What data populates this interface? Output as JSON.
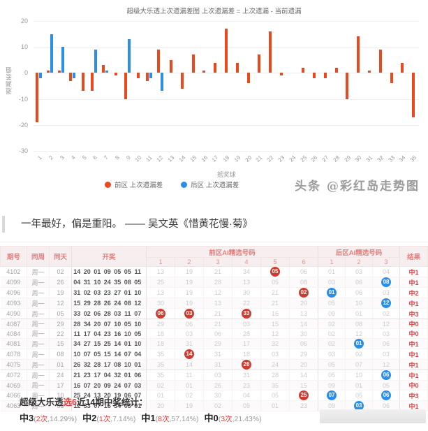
{
  "chart_data": {
    "type": "bar",
    "title": "超级大乐透上次遗漏差图 上次遗漏差 = 上次遗漏 - 当前遗漏",
    "xlabel": "摇奖球",
    "ylabel": "遗漏差值",
    "ylim": [
      -30,
      20
    ],
    "yticks": [
      20,
      10,
      0,
      -10,
      -20,
      -30
    ],
    "grid": true,
    "legend_position": "bottom",
    "categories": [
      "1",
      "2",
      "3",
      "4",
      "5",
      "6",
      "7",
      "8",
      "9",
      "10",
      "11",
      "12",
      "13",
      "14",
      "15",
      "16",
      "17",
      "18",
      "19",
      "20",
      "21",
      "22",
      "23",
      "24",
      "25",
      "26",
      "27",
      "28",
      "29",
      "30",
      "31",
      "32",
      "33",
      "34",
      "35"
    ],
    "series": [
      {
        "name": "前区 上次遗漏差",
        "color": "#e8491e",
        "values": [
          -19,
          1,
          1,
          -3,
          -7,
          -7,
          3,
          -1,
          -10,
          -2,
          -3,
          9,
          5,
          -6,
          7,
          1,
          4,
          17,
          4,
          -4,
          7,
          16,
          -1,
          0,
          2,
          -2,
          -2,
          2,
          -10,
          14,
          1,
          9,
          -4,
          4,
          -17
        ]
      },
      {
        "name": "后区 上次遗漏差",
        "color": "#2b8fe8",
        "values": [
          -2,
          15,
          10,
          -2,
          0,
          9,
          1,
          0,
          13,
          0,
          -2,
          -7,
          null,
          null,
          null,
          null,
          null,
          null,
          null,
          null,
          null,
          null,
          null,
          null,
          null,
          null,
          null,
          null,
          null,
          null,
          null,
          null,
          null,
          null,
          null
        ]
      }
    ]
  },
  "watermark": "头条 @彩红岛走势图",
  "quote": {
    "text": "一年最好，偏是重阳。 —— 吴文英《惜黄花慢·菊》"
  },
  "table": {
    "col_issue": "期号",
    "col_week": "同周",
    "col_day": "同天",
    "col_draw": "开奖",
    "col_front_group": "前区AI精选号码",
    "col_back_group": "后区AI精选号码",
    "col_result": "结果",
    "front_subcols": [
      "1",
      "2",
      "3",
      "4",
      "5",
      "6"
    ],
    "back_subcols": [
      "1",
      "2",
      "3"
    ],
    "rows": [
      {
        "issue": "4102",
        "week": "周一",
        "day": "02",
        "draw": [
          "14",
          "20",
          "01",
          "09",
          "05",
          "05",
          "11"
        ],
        "front": [
          "13",
          "19",
          "21",
          "34",
          "05",
          "06"
        ],
        "front_hits": [
          4
        ],
        "back": [
          "01",
          "03",
          "04"
        ],
        "back_hits": [],
        "result": "中1"
      },
      {
        "issue": "4099",
        "week": "周一",
        "day": "26",
        "draw": [
          "04",
          "31",
          "10",
          "24",
          "35",
          "08",
          "05"
        ],
        "front": [
          "25",
          "19",
          "28",
          "13",
          "05",
          "08"
        ],
        "front_hits": [],
        "back": [
          "03",
          "06",
          "08"
        ],
        "back_hits": [
          2
        ],
        "result": "中1"
      },
      {
        "issue": "4096",
        "week": "周一",
        "day": "19",
        "draw": [
          "31",
          "02",
          "03",
          "23",
          "27",
          "01",
          "10"
        ],
        "front": [
          "13",
          "19",
          "12",
          "30",
          "21",
          "02"
        ],
        "front_hits": [
          5
        ],
        "back": [
          "01",
          "06",
          "03"
        ],
        "back_hits": [
          0
        ],
        "result": "中2"
      },
      {
        "issue": "4093",
        "week": "周一",
        "day": "12",
        "draw": [
          "15",
          "29",
          "28",
          "26",
          "24",
          "08",
          "12"
        ],
        "front": [
          "30",
          "19",
          "13",
          "22",
          "21",
          "20"
        ],
        "front_hits": [],
        "back": [
          "05",
          "10",
          "12"
        ],
        "back_hits": [
          2
        ],
        "result": "中1"
      },
      {
        "issue": "4090",
        "week": "周一",
        "day": "05",
        "draw": [
          "33",
          "02",
          "06",
          "28",
          "03",
          "11",
          "07"
        ],
        "front": [
          "06",
          "03",
          "21",
          "33",
          "16",
          "13"
        ],
        "front_hits": [
          0,
          1,
          3
        ],
        "back": [
          "09",
          "01",
          "02"
        ],
        "back_hits": [],
        "result": "中3"
      },
      {
        "issue": "4087",
        "week": "周一",
        "day": "29",
        "draw": [
          "28",
          "34",
          "20",
          "07",
          "10",
          "05",
          "10"
        ],
        "front": [
          "29",
          "06",
          "21",
          "03",
          "15",
          "14"
        ],
        "front_hits": [],
        "back": [
          "02",
          "08",
          "12"
        ],
        "back_hits": [],
        "result": "中0"
      },
      {
        "issue": "4084",
        "week": "周一",
        "day": "22",
        "draw": [
          "11",
          "17",
          "04",
          "23",
          "16",
          "10",
          "05"
        ],
        "front": [
          "18",
          "03",
          "06",
          "28",
          "12",
          "30"
        ],
        "front_hits": [],
        "back": [
          "02",
          "12",
          "03"
        ],
        "back_hits": [],
        "result": "中0"
      },
      {
        "issue": "4081",
        "week": "周一",
        "day": "15",
        "draw": [
          "34",
          "27",
          "15",
          "25",
          "14",
          "01",
          "10"
        ],
        "front": [
          "18",
          "31",
          "29",
          "17",
          "32",
          "06"
        ],
        "front_hits": [],
        "back": [
          "02",
          "01",
          "06"
        ],
        "back_hits": [
          1
        ],
        "result": "中1"
      },
      {
        "issue": "4078",
        "week": "周一",
        "day": "08",
        "draw": [
          "10",
          "07",
          "05",
          "15",
          "14",
          "07",
          "04"
        ],
        "front": [
          "35",
          "14",
          "31",
          "18",
          "03",
          "29"
        ],
        "front_hits": [
          1
        ],
        "back": [
          "03",
          "02",
          "03"
        ],
        "back_hits": [],
        "result": "中1"
      },
      {
        "issue": "4075",
        "week": "周一",
        "day": "01",
        "draw": [
          "26",
          "32",
          "28",
          "17",
          "08",
          "10",
          "01"
        ],
        "front": [
          "35",
          "14",
          "31",
          "26",
          "24",
          "20"
        ],
        "front_hits": [
          3
        ],
        "back": [
          "05",
          "07",
          "12"
        ],
        "back_hits": [],
        "result": "中1"
      },
      {
        "issue": "4072",
        "week": "周一",
        "day": "24",
        "draw": [
          "21",
          "23",
          "17",
          "04",
          "32",
          "01",
          "06"
        ],
        "front": [
          "35",
          "11",
          "03",
          "31",
          "28",
          "14"
        ],
        "front_hits": [],
        "back": [
          "05",
          "10",
          "06"
        ],
        "back_hits": [
          2
        ],
        "result": "中1"
      },
      {
        "issue": "4069",
        "week": "周一",
        "day": "17",
        "draw": [
          "16",
          "07",
          "20",
          "09",
          "24",
          "07",
          "03"
        ],
        "front": [
          "02",
          "01",
          "26",
          "23",
          "35",
          "15"
        ],
        "front_hits": [],
        "back": [
          "09",
          "01",
          "05"
        ],
        "back_hits": [],
        "result": "中0"
      },
      {
        "issue": "4066",
        "week": "周一",
        "day": "10",
        "draw": [
          "25",
          "24",
          "13",
          "20",
          "19",
          "06",
          "07"
        ],
        "front": [
          "01",
          "02",
          "30",
          "04",
          "05",
          "25"
        ],
        "front_hits": [
          5
        ],
        "back": [
          "07",
          "05",
          "06"
        ],
        "back_hits": [
          0,
          2
        ],
        "result": "中3"
      },
      {
        "issue": "4063",
        "week": "周一",
        "day": "03",
        "draw": [
          "12",
          "33",
          "07",
          "16",
          "34",
          "03",
          "01"
        ],
        "front": [
          "20",
          "19",
          "02",
          "09",
          "01",
          "23"
        ],
        "front_hits": [],
        "back": [
          "09",
          "03",
          "06"
        ],
        "back_hits": [
          1
        ],
        "result": "中1"
      }
    ]
  },
  "summary": {
    "title_prefix": "超级大乐透",
    "title_highlight": "选6",
    "title_suffix": "近14期中奖统计：",
    "stats": [
      {
        "label": "中3",
        "count": "2次",
        "pct": "14.29%"
      },
      {
        "label": "中2",
        "count": "1次",
        "pct": "7.14%"
      },
      {
        "label": "中1",
        "count": "8次",
        "pct": "57.14%"
      },
      {
        "label": "中0",
        "count": "3次",
        "pct": "21.43%"
      }
    ]
  }
}
